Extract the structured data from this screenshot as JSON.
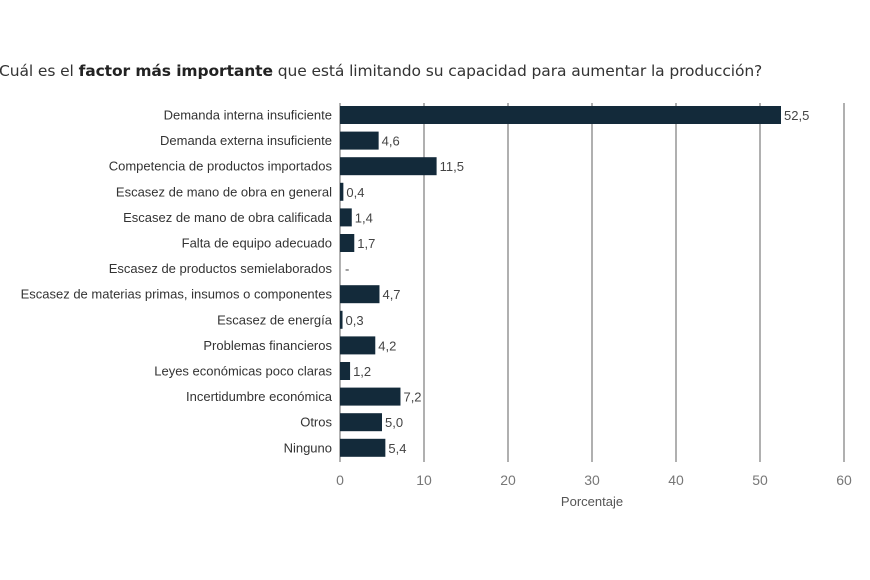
{
  "chart_data": {
    "type": "bar",
    "orientation": "horizontal",
    "title_pre": "Cuál es el ",
    "title_bold": "factor más importante",
    "title_post": " que está limitando su capacidad para aumentar la producción?",
    "categories": [
      "Demanda interna insuficiente",
      "Demanda externa insuficiente",
      "Competencia de productos importados",
      "Escasez de mano de obra en general",
      "Escasez de mano de obra calificada",
      "Falta de equipo adecuado",
      "Escasez de productos semielaborados",
      "Escasez de materias primas, insumos o componentes",
      "Escasez de energía",
      "Problemas financieros",
      "Leyes económicas poco claras",
      "Incertidumbre económica",
      "Otros",
      "Ninguno"
    ],
    "values": [
      52.5,
      4.6,
      11.5,
      0.4,
      1.4,
      1.7,
      null,
      4.7,
      0.3,
      4.2,
      1.2,
      7.2,
      5.0,
      5.4
    ],
    "labels": [
      "52,5",
      "4,6",
      "11,5",
      "0,4",
      "1,4",
      "1,7",
      "-",
      "4,7",
      "0,3",
      "4,2",
      "1,2",
      "7,2",
      "5,0",
      "5,4"
    ],
    "xlabel": "Porcentaje",
    "xlim": [
      0,
      60
    ],
    "xticks": [
      "0",
      "10",
      "20",
      "30",
      "40",
      "50",
      "60"
    ],
    "grid": true,
    "bar_color": "#132a3a",
    "grid_color": "#b0b0b0"
  }
}
